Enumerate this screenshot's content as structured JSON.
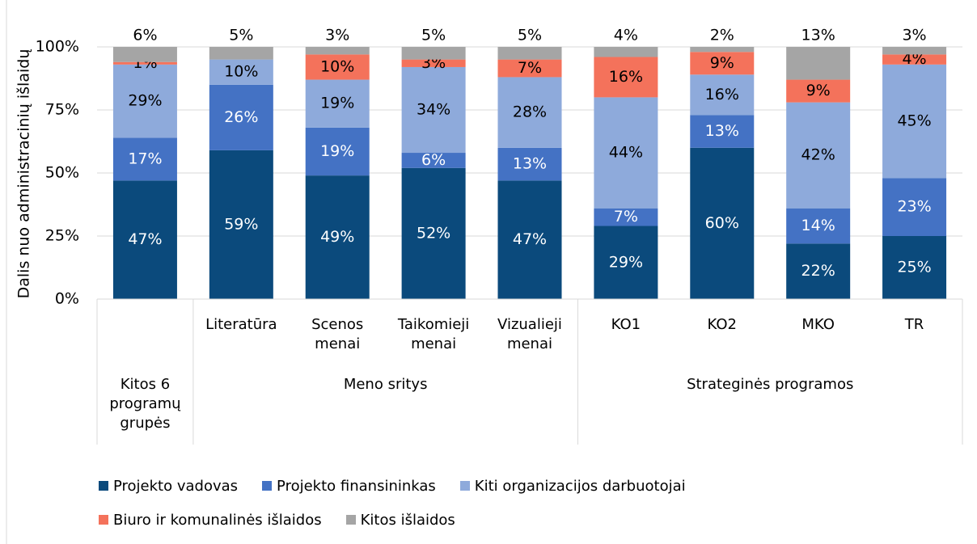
{
  "chart_data": {
    "type": "stacked_bar",
    "y_label": "Dalis nuo administracinių išlaidų",
    "categories": [
      null,
      "Literatūra",
      "Scenos menai",
      "Taikomieji menai",
      "Vizualieji menai",
      "KO1",
      "KO2",
      "MKO",
      "TR"
    ],
    "groups": [
      {
        "name": "Kitos 6 programų grupės",
        "size": 1
      },
      {
        "name": "Meno sritys",
        "size": 4
      },
      {
        "name": "Strateginės programos",
        "size": 4
      }
    ],
    "series": [
      {
        "name": "Projekto vadovas",
        "color": "#0b4a7c",
        "label_color": "#ffffff",
        "values": [
          47,
          59,
          49,
          52,
          47,
          29,
          60,
          22,
          25
        ],
        "value_labels": [
          "47%",
          "59%",
          "49%",
          "52%",
          "47%",
          "29%",
          "60%",
          "22%",
          "25%"
        ]
      },
      {
        "name": "Projekto finansininkas",
        "color": "#4472c4",
        "label_color": "#ffffff",
        "values": [
          17,
          26,
          19,
          6,
          13,
          7,
          13,
          14,
          23
        ],
        "value_labels": [
          "17%",
          "26%",
          "19%",
          "6%",
          "13%",
          "7%",
          "13%",
          "14%",
          "23%"
        ]
      },
      {
        "name": "Kiti organizacijos darbuotojai",
        "color": "#8eaadb",
        "label_color": "#000000",
        "values": [
          29,
          10,
          19,
          34,
          28,
          44,
          16,
          42,
          45
        ],
        "value_labels": [
          "29%",
          "10%",
          "19%",
          "34%",
          "28%",
          "44%",
          "16%",
          "42%",
          "45%"
        ]
      },
      {
        "name": "Biuro ir komunalinės išlaidos",
        "color": "#f4725b",
        "label_color": "#000000",
        "values": [
          1,
          null,
          10,
          3,
          7,
          16,
          9,
          9,
          4
        ],
        "value_labels": [
          "1%",
          null,
          "10%",
          "3%",
          "7%",
          "16%",
          "9%",
          "9%",
          "4%"
        ]
      },
      {
        "name": "Kitos išlaidos",
        "color": "#a5a5a5",
        "label_color": "#000000",
        "values": [
          6,
          5,
          3,
          5,
          5,
          4,
          2,
          13,
          3
        ],
        "value_labels": [
          "6%",
          "5%",
          "3%",
          "5%",
          "5%",
          "4%",
          "2%",
          "13%",
          "3%"
        ]
      }
    ],
    "ylim": [
      0,
      100
    ],
    "yticks": [
      {
        "value": 0,
        "label": "0%"
      },
      {
        "value": 25,
        "label": "25%"
      },
      {
        "value": 50,
        "label": "50%"
      },
      {
        "value": 75,
        "label": "75%"
      },
      {
        "value": 100,
        "label": "100%"
      }
    ],
    "grid": true
  }
}
